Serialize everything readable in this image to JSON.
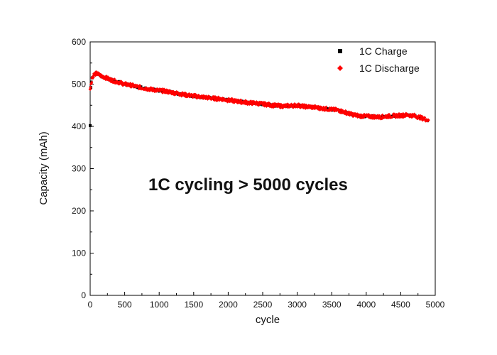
{
  "chart_data": {
    "type": "scatter",
    "title": "",
    "xlabel": "cycle",
    "ylabel": "Capacity (mAh)",
    "xlim": [
      0,
      5000
    ],
    "ylim": [
      0,
      600
    ],
    "xticks": [
      0,
      500,
      1000,
      1500,
      2000,
      2500,
      3000,
      3500,
      4000,
      4500,
      5000
    ],
    "yticks": [
      0,
      100,
      200,
      300,
      400,
      500,
      600
    ],
    "xtick_labels": [
      "0",
      "500",
      "1000",
      "1500",
      "2000",
      "2500",
      "3000",
      "3500",
      "4000",
      "4500",
      "5000"
    ],
    "ytick_labels": [
      "0",
      "100",
      "200",
      "300",
      "400",
      "500",
      "600"
    ],
    "grid": false,
    "legend_position": "top-right",
    "annotation": "1C cycling > 5000 cycles",
    "series": [
      {
        "name": "1C Charge",
        "color": "#000000",
        "marker": "square",
        "x": [
          0,
          10,
          30
        ],
        "y": [
          402,
          492,
          515
        ]
      },
      {
        "name": "1C Discharge",
        "color": "#ff0000",
        "marker": "diamond",
        "x": [
          0,
          30,
          60,
          100,
          150,
          200,
          300,
          400,
          500,
          600,
          700,
          800,
          900,
          1000,
          1100,
          1200,
          1300,
          1400,
          1500,
          1600,
          1700,
          1800,
          1900,
          2000,
          2100,
          2200,
          2300,
          2400,
          2500,
          2600,
          2700,
          2800,
          2900,
          3000,
          3100,
          3200,
          3300,
          3400,
          3500,
          3600,
          3700,
          3800,
          3900,
          4000,
          4100,
          4200,
          4300,
          4400,
          4500,
          4600,
          4700,
          4800,
          4900
        ],
        "y": [
          488,
          515,
          524,
          525,
          520,
          517,
          510,
          505,
          500,
          497,
          493,
          490,
          487,
          485,
          483,
          480,
          477,
          474,
          472,
          470,
          468,
          466,
          465,
          462,
          460,
          458,
          456,
          455,
          453,
          451,
          449,
          448,
          449,
          450,
          447,
          446,
          444,
          442,
          440,
          438,
          433,
          428,
          425,
          424,
          423,
          422,
          424,
          425,
          426,
          427,
          425,
          420,
          415
        ]
      }
    ]
  }
}
